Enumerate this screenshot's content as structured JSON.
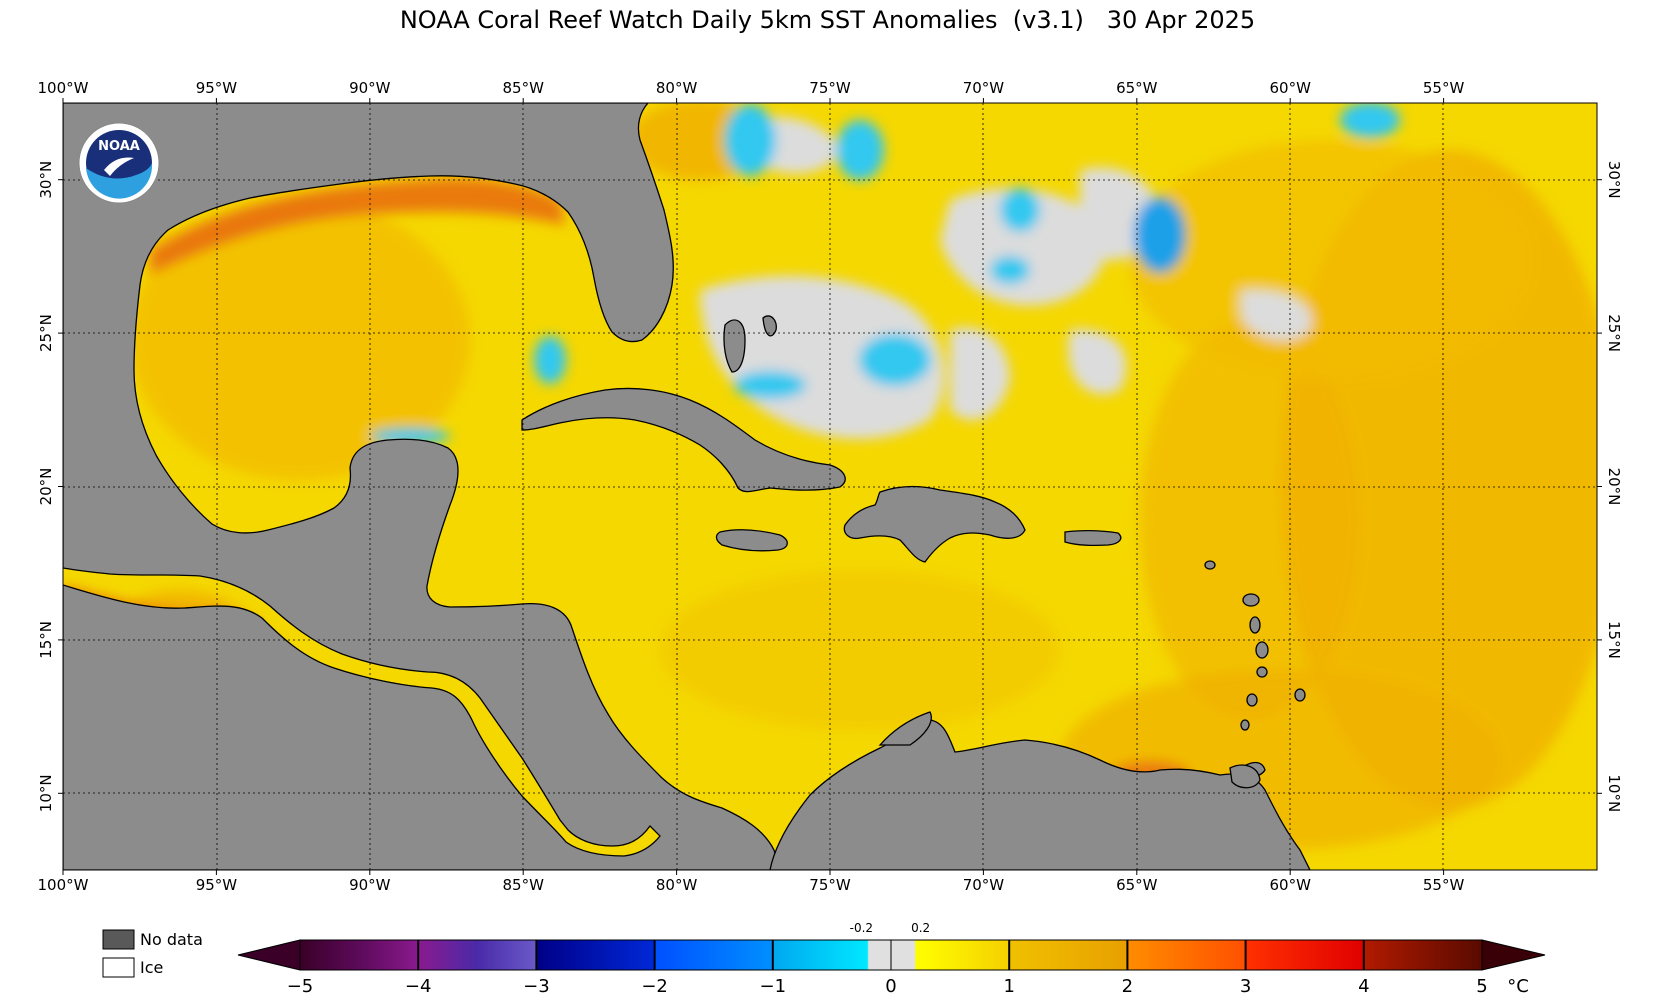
{
  "title": "NOAA Coral Reef Watch Daily 5km SST Anomalies  (v3.1)   30 Apr 2025",
  "logo": {
    "icon": "noaa-logo-icon",
    "text": "NOAA"
  },
  "map": {
    "lon_range": [
      -100,
      -50
    ],
    "lat_range": [
      7.5,
      32.5
    ],
    "grid": true,
    "lon_ticks": [
      "100°W",
      "95°W",
      "90°W",
      "85°W",
      "80°W",
      "75°W",
      "70°W",
      "65°W",
      "60°W",
      "55°W"
    ],
    "lat_ticks": [
      "10°N",
      "15°N",
      "20°N",
      "25°N",
      "30°N"
    ],
    "colors": {
      "land": "#8c8c8c",
      "ocean_base": "#f5d800",
      "warm": "#f0b000",
      "hot": "#e86a10",
      "neutral": "#dcdcdc",
      "cool": "#30c8f0",
      "cooler": "#1aa0e8"
    }
  },
  "legend": {
    "no_data_label": "No data",
    "ice_label": "Ice",
    "no_data_color": "#595959",
    "ice_color": "#ffffff"
  },
  "colorbar": {
    "unit": "°C",
    "ticks": [
      "−5",
      "−4",
      "−3",
      "−2",
      "−1",
      "0",
      "1",
      "2",
      "3",
      "4",
      "5"
    ],
    "small_ticks": [
      "-0.2",
      "0.2"
    ],
    "range": [
      -5,
      5
    ],
    "stops": [
      {
        "v": -5,
        "c": "#3a0028"
      },
      {
        "v": -4.5,
        "c": "#5c0a5a"
      },
      {
        "v": -4,
        "c": "#8a1a8e"
      },
      {
        "v": -3.5,
        "c": "#4a2aa8"
      },
      {
        "v": -3,
        "c": "#6a5ac8"
      },
      {
        "v": -2.99,
        "c": "#000088"
      },
      {
        "v": -2,
        "c": "#0028d8"
      },
      {
        "v": -1.99,
        "c": "#0050ff"
      },
      {
        "v": -1,
        "c": "#0090ff"
      },
      {
        "v": -0.99,
        "c": "#00a8f0"
      },
      {
        "v": -0.2,
        "c": "#00e8ff"
      },
      {
        "v": -0.19,
        "c": "#e0e0e0"
      },
      {
        "v": 0.2,
        "c": "#e0e0e0"
      },
      {
        "v": 0.21,
        "c": "#ffff00"
      },
      {
        "v": 1,
        "c": "#f5d000"
      },
      {
        "v": 1.01,
        "c": "#f0c000"
      },
      {
        "v": 2,
        "c": "#e8a000"
      },
      {
        "v": 2.01,
        "c": "#ff8c00"
      },
      {
        "v": 3,
        "c": "#ff5000"
      },
      {
        "v": 3.01,
        "c": "#ff3000"
      },
      {
        "v": 4,
        "c": "#e00000"
      },
      {
        "v": 4.01,
        "c": "#b01a00"
      },
      {
        "v": 5,
        "c": "#5a0a00"
      }
    ]
  }
}
